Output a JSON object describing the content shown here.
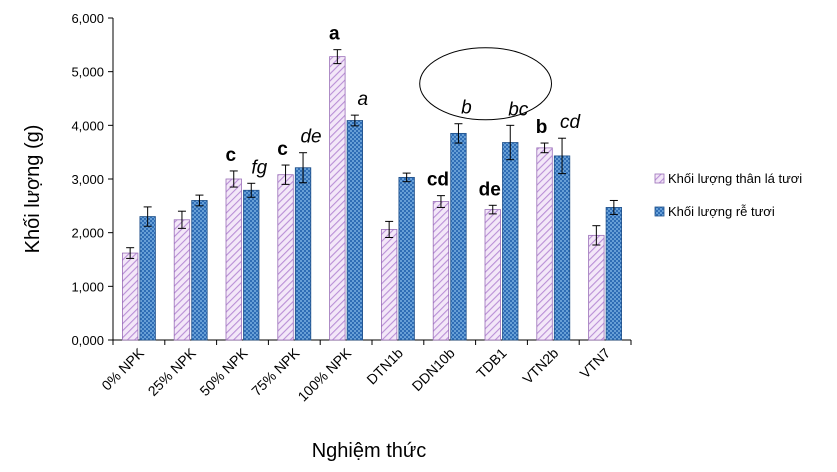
{
  "chart_data": {
    "type": "bar",
    "xlabel": "Nghiệm thức",
    "ylabel": "Khối lượng (g)",
    "ylim": [
      0,
      6000
    ],
    "yticks": [
      "0,000",
      "1,000",
      "2,000",
      "3,000",
      "4,000",
      "5,000",
      "6,000"
    ],
    "grid": false,
    "legend_position": "right",
    "categories": [
      "0% NPK",
      "25% NPK",
      "50% NPK",
      "75% NPK",
      "100% NPK",
      "DTN1b",
      "DDN10b",
      "TDB1",
      "VTN2b",
      "VTN7"
    ],
    "series": [
      {
        "name": "Khối lượng thân lá tươi",
        "color": "#d6b3e6",
        "values": [
          1620,
          2240,
          3000,
          3080,
          5280,
          2060,
          2580,
          2430,
          3580,
          1950
        ],
        "errors": [
          100,
          160,
          150,
          180,
          130,
          150,
          110,
          80,
          90,
          180
        ],
        "labels": [
          "",
          "",
          "c",
          "c",
          "a",
          "",
          "cd",
          "de",
          "b",
          ""
        ]
      },
      {
        "name": "Khối lượng rễ tươi",
        "color": "#3a7ac0",
        "values": [
          2300,
          2600,
          2790,
          3210,
          4090,
          3030,
          3850,
          3680,
          3430,
          2470
        ],
        "errors": [
          180,
          100,
          130,
          280,
          100,
          80,
          180,
          320,
          330,
          130
        ],
        "labels": [
          "",
          "",
          "fg",
          "de",
          "a",
          "",
          "b",
          "bc",
          "cd",
          ""
        ]
      }
    ],
    "annotations": [
      {
        "type": "ellipse",
        "around": [
          "DDN10b",
          "TDB1"
        ],
        "series": "Khối lượng rễ tươi"
      }
    ]
  }
}
